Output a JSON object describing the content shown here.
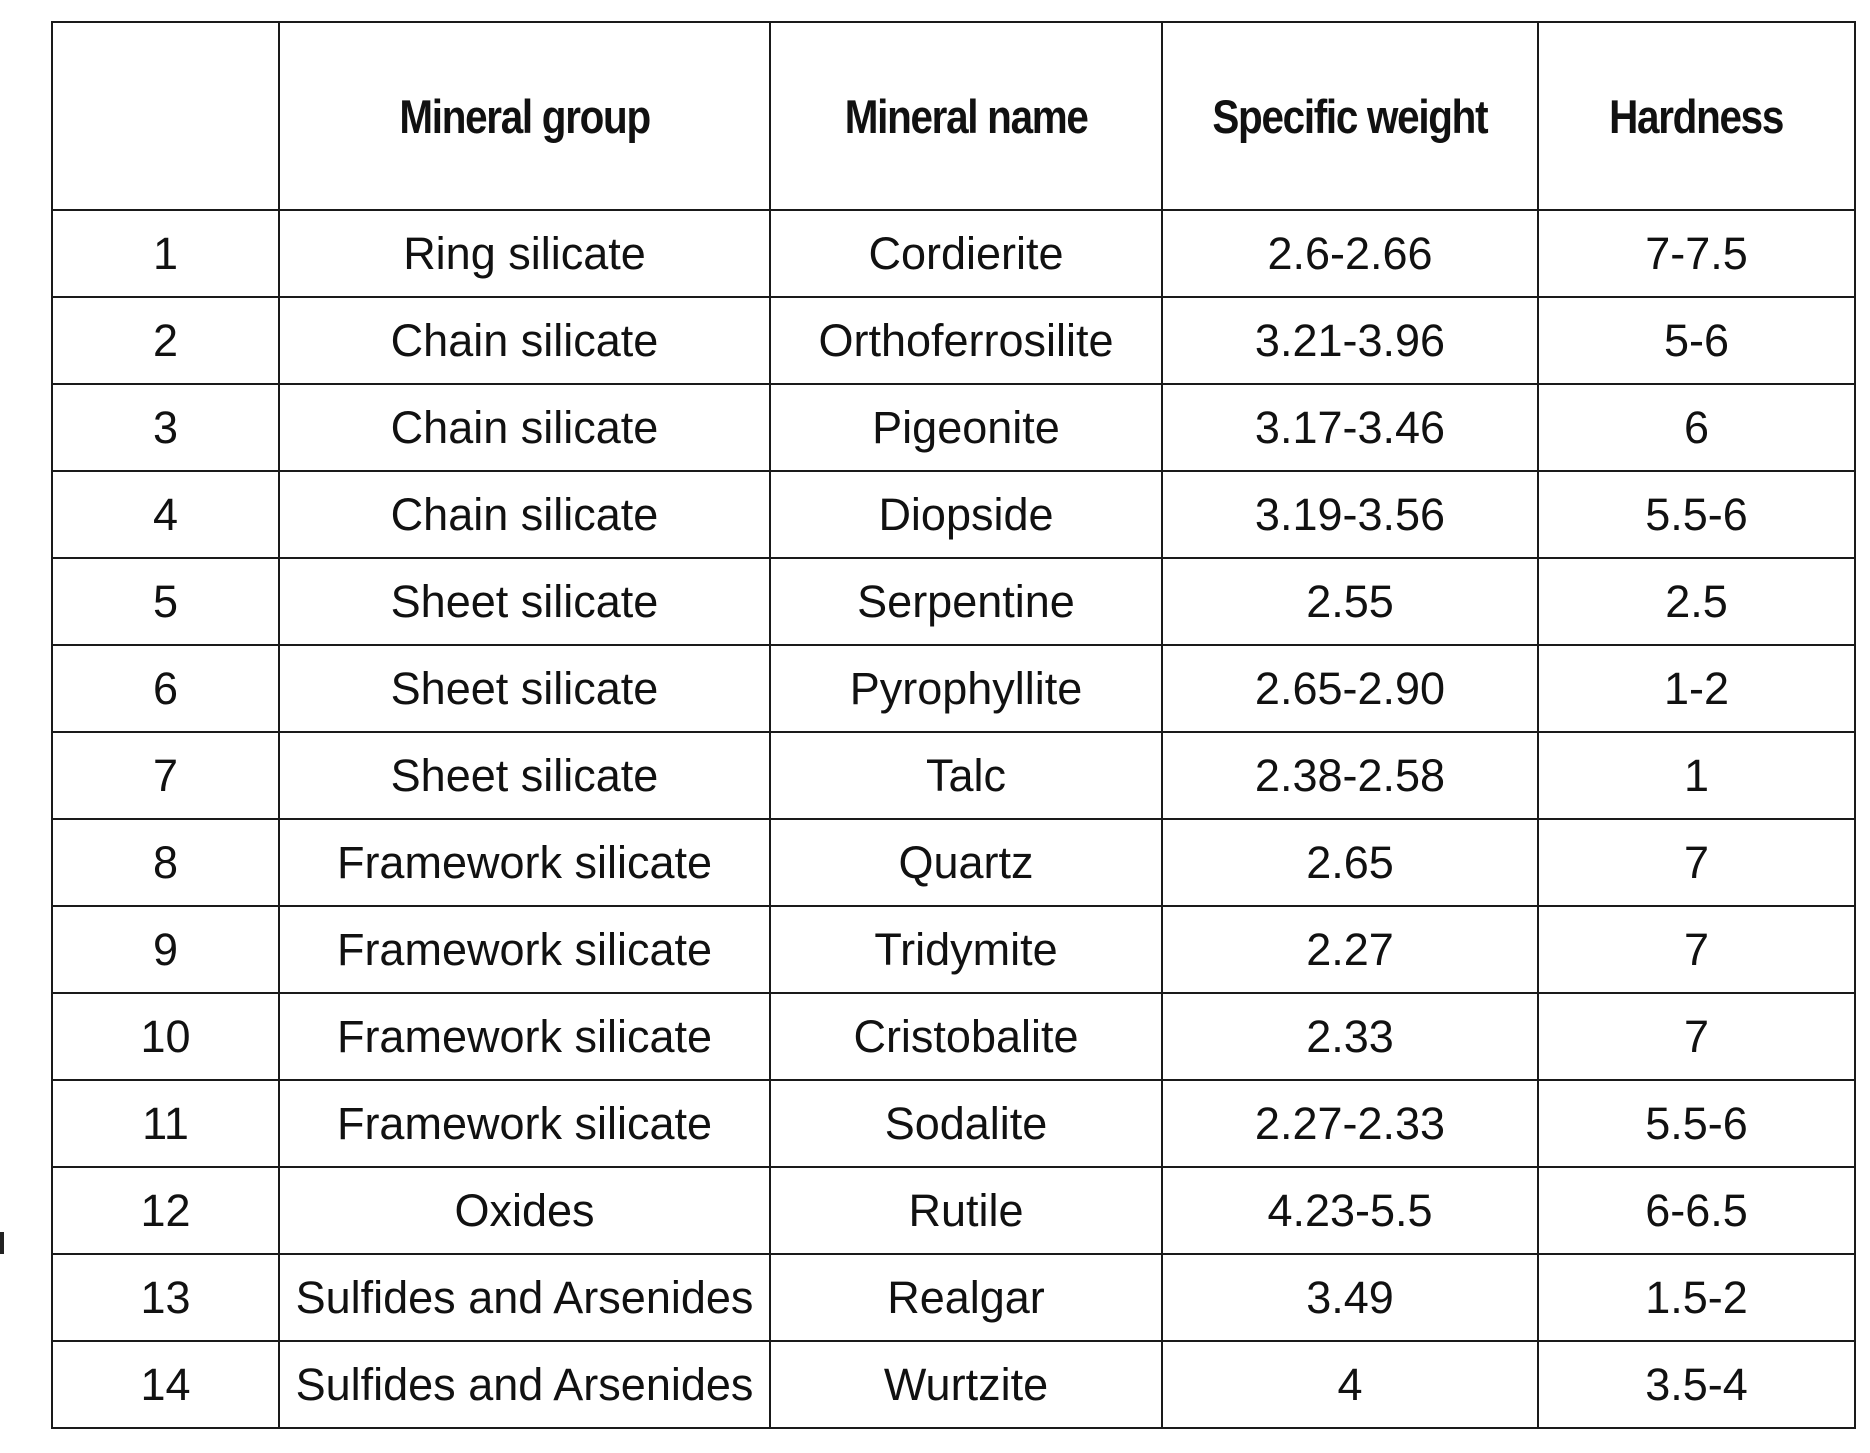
{
  "table": {
    "headers": [
      "",
      "Mineral group",
      "Mineral name",
      "Specific weight",
      "Hardness"
    ],
    "rows": [
      [
        "1",
        "Ring silicate",
        "Cordierite",
        "2.6-2.66",
        "7-7.5"
      ],
      [
        "2",
        "Chain silicate",
        "Orthoferrosilite",
        "3.21-3.96",
        "5-6"
      ],
      [
        "3",
        "Chain silicate",
        "Pigeonite",
        "3.17-3.46",
        "6"
      ],
      [
        "4",
        "Chain silicate",
        "Diopside",
        "3.19-3.56",
        "5.5-6"
      ],
      [
        "5",
        "Sheet silicate",
        "Serpentine",
        "2.55",
        "2.5"
      ],
      [
        "6",
        "Sheet silicate",
        "Pyrophyllite",
        "2.65-2.90",
        "1-2"
      ],
      [
        "7",
        "Sheet silicate",
        "Talc",
        "2.38-2.58",
        "1"
      ],
      [
        "8",
        "Framework silicate",
        "Quartz",
        "2.65",
        "7"
      ],
      [
        "9",
        "Framework silicate",
        "Tridymite",
        "2.27",
        "7"
      ],
      [
        "10",
        "Framework silicate",
        "Cristobalite",
        "2.33",
        "7"
      ],
      [
        "11",
        "Framework silicate",
        "Sodalite",
        "2.27-2.33",
        "5.5-6"
      ],
      [
        "12",
        "Oxides",
        "Rutile",
        "4.23-5.5",
        "6-6.5"
      ],
      [
        "13",
        "Sulfides and Arsenides",
        "Realgar",
        "3.49",
        "1.5-2"
      ],
      [
        "14",
        "Sulfides and Arsenides",
        "Wurtzite",
        "4",
        "3.5-4"
      ]
    ]
  }
}
